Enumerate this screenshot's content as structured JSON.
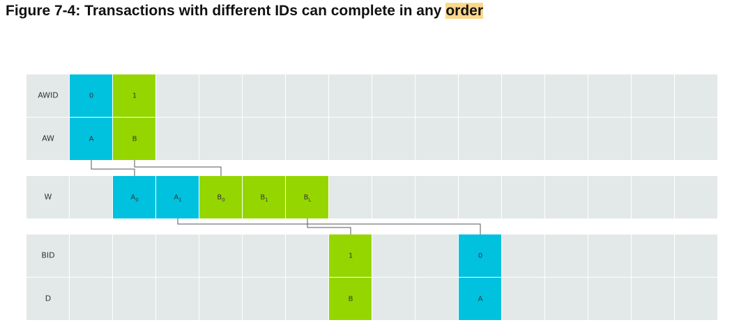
{
  "title": {
    "text": "Figure 7-4: Transactions with different IDs can complete in any",
    "highlight": "order"
  },
  "rows": [
    {
      "label": "AWID",
      "cells": [
        {
          "text": "0",
          "color": "#00c1de"
        },
        {
          "text": "1",
          "color": "#95d600"
        },
        null,
        null,
        null,
        null,
        null,
        null,
        null,
        null,
        null,
        null,
        null,
        null,
        null
      ]
    },
    {
      "label": "AW",
      "cells": [
        {
          "text": "A",
          "color": "#00c1de"
        },
        {
          "text": "B",
          "color": "#95d600"
        },
        null,
        null,
        null,
        null,
        null,
        null,
        null,
        null,
        null,
        null,
        null,
        null,
        null
      ]
    },
    {
      "label": "W",
      "cells": [
        null,
        {
          "text": "A",
          "sub": "0",
          "color": "#00c1de"
        },
        {
          "text": "A",
          "sub": "1",
          "color": "#00c1de"
        },
        {
          "text": "B",
          "sub": "0",
          "color": "#95d600"
        },
        {
          "text": "B",
          "sub": "1",
          "color": "#95d600"
        },
        {
          "text": "B",
          "sub": "L",
          "color": "#95d600"
        },
        null,
        null,
        null,
        null,
        null,
        null,
        null,
        null,
        null
      ]
    },
    {
      "label": "BID",
      "cells": [
        null,
        null,
        null,
        null,
        null,
        null,
        {
          "text": "1",
          "color": "#95d600"
        },
        null,
        null,
        {
          "text": "0",
          "color": "#00c1de"
        },
        null,
        null,
        null,
        null,
        null
      ]
    },
    {
      "label": "D",
      "cells": [
        null,
        null,
        null,
        null,
        null,
        null,
        {
          "text": "B",
          "color": "#95d600"
        },
        null,
        null,
        {
          "text": "A",
          "color": "#00c1de"
        },
        null,
        null,
        null,
        null,
        null
      ]
    }
  ]
}
